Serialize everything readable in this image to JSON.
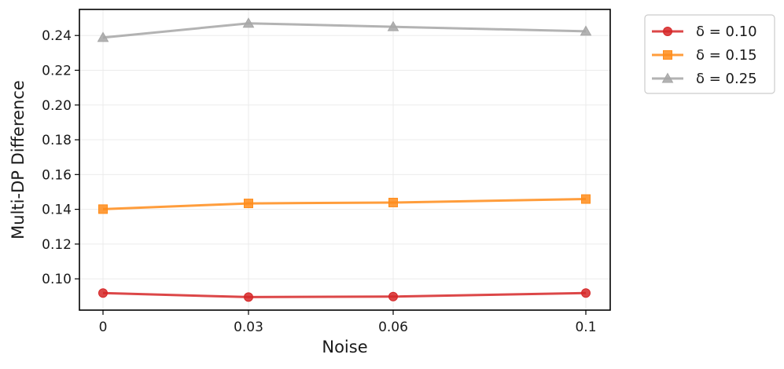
{
  "chart_data": {
    "type": "line",
    "title": "",
    "xlabel": "Noise",
    "ylabel": "Multi-DP Difference",
    "categories": [
      "0",
      "0.03",
      "0.06",
      "0.1"
    ],
    "ylim": [
      0.082,
      0.255
    ],
    "yticks": [
      "0.10",
      "0.12",
      "0.14",
      "0.16",
      "0.18",
      "0.20",
      "0.22",
      "0.24"
    ],
    "grid": true,
    "legend": {
      "placement": "outside-top-right"
    },
    "series": [
      {
        "name": "δ = 0.10",
        "values": [
          0.0918,
          0.0895,
          0.0898,
          0.0918
        ],
        "color": "#d62728",
        "marker": "circle"
      },
      {
        "name": "δ = 0.15",
        "values": [
          0.1401,
          0.1434,
          0.1439,
          0.1459
        ],
        "color": "#ff8c1a",
        "marker": "square"
      },
      {
        "name": "δ = 0.25",
        "values": [
          0.2388,
          0.247,
          0.245,
          0.2424
        ],
        "color": "#a6a6a6",
        "marker": "triangle"
      }
    ]
  }
}
